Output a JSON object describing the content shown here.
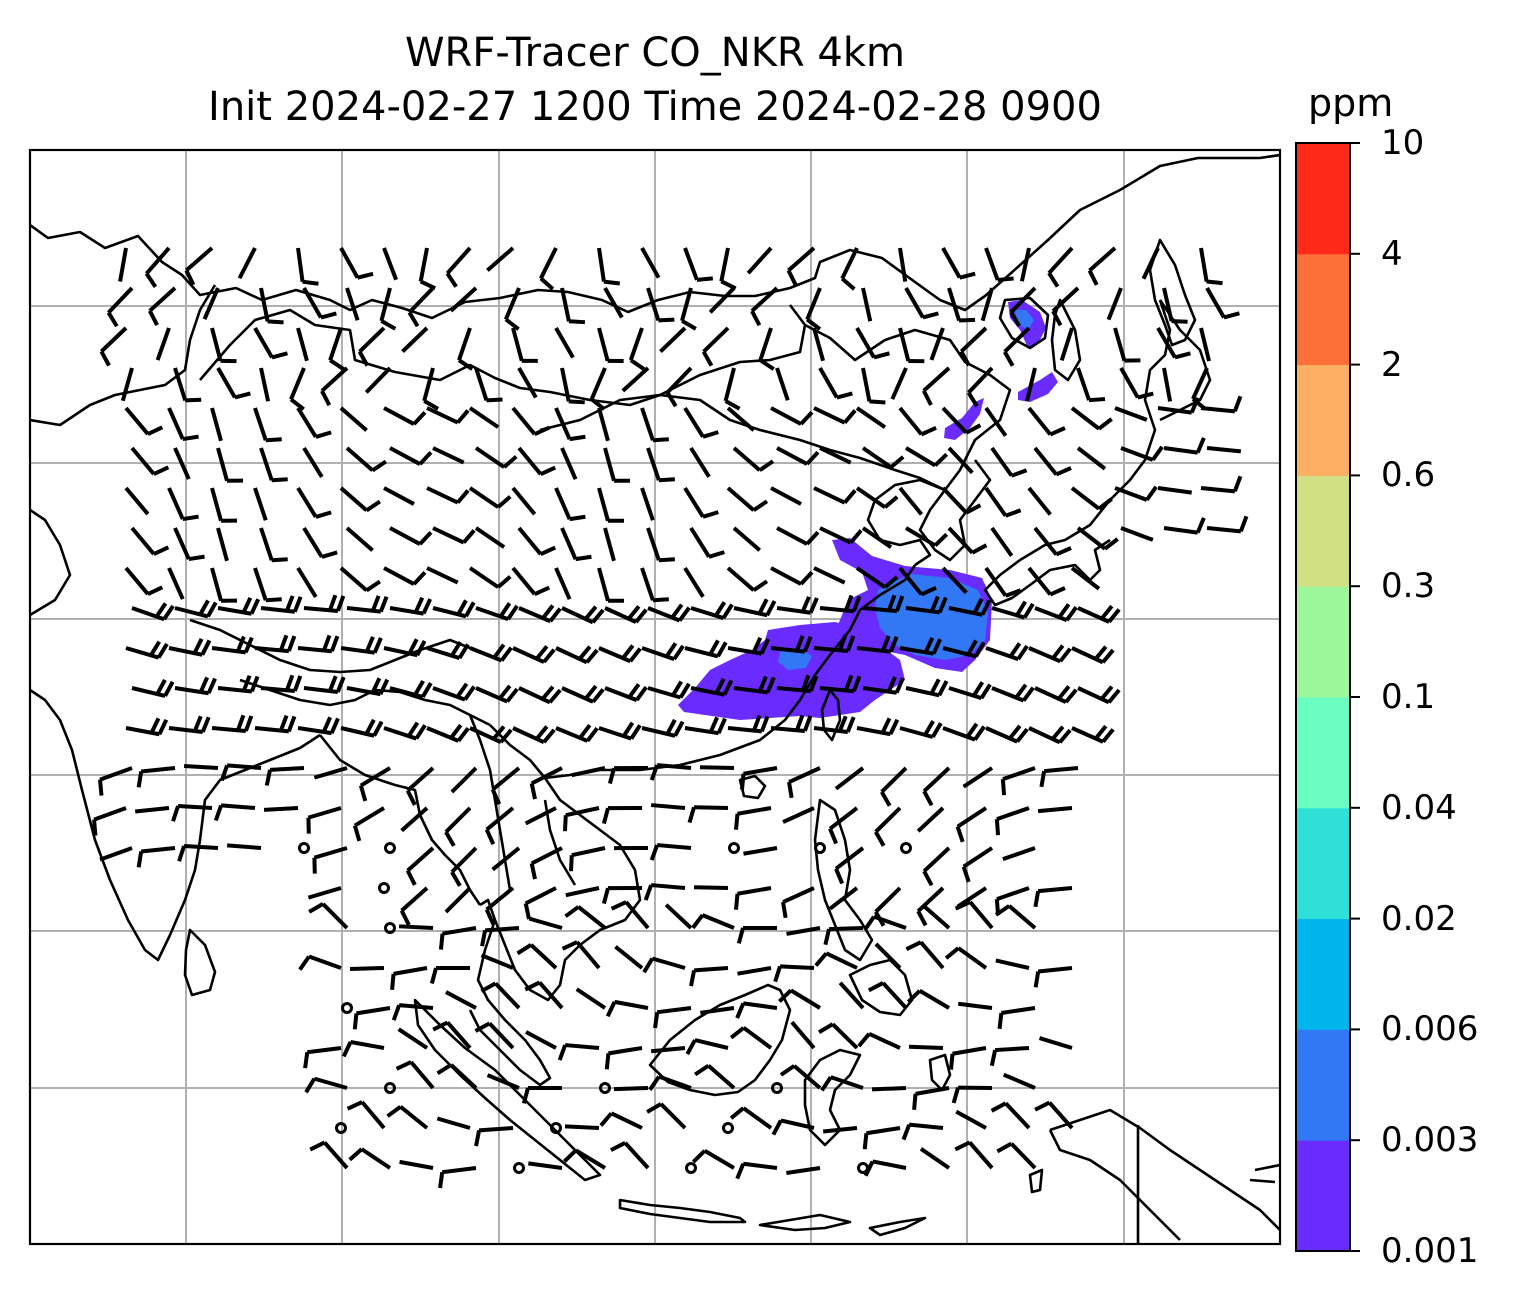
{
  "figure": {
    "title_line1": "WRF-Tracer CO_NKR 4km",
    "title_line2": "Init 2024-02-27 1200 Time 2024-02-28 0900"
  },
  "colorbar": {
    "unit": "ppm",
    "levels": [
      "0.001",
      "0.003",
      "0.006",
      "0.02",
      "0.04",
      "0.1",
      "0.3",
      "0.6",
      "2",
      "4",
      "10"
    ],
    "colors": [
      "#6a2bff",
      "#3277f4",
      "#00b4ec",
      "#2ee0d8",
      "#6affc0",
      "#9cf89a",
      "#d2e085",
      "#fdb064",
      "#ff7038",
      "#ff2a1a"
    ]
  },
  "map": {
    "plume_colors": {
      "low": "#6a2bff",
      "mid": "#3277f4"
    },
    "gridline_color": "#b0b0b0",
    "background": "#ffffff"
  }
}
